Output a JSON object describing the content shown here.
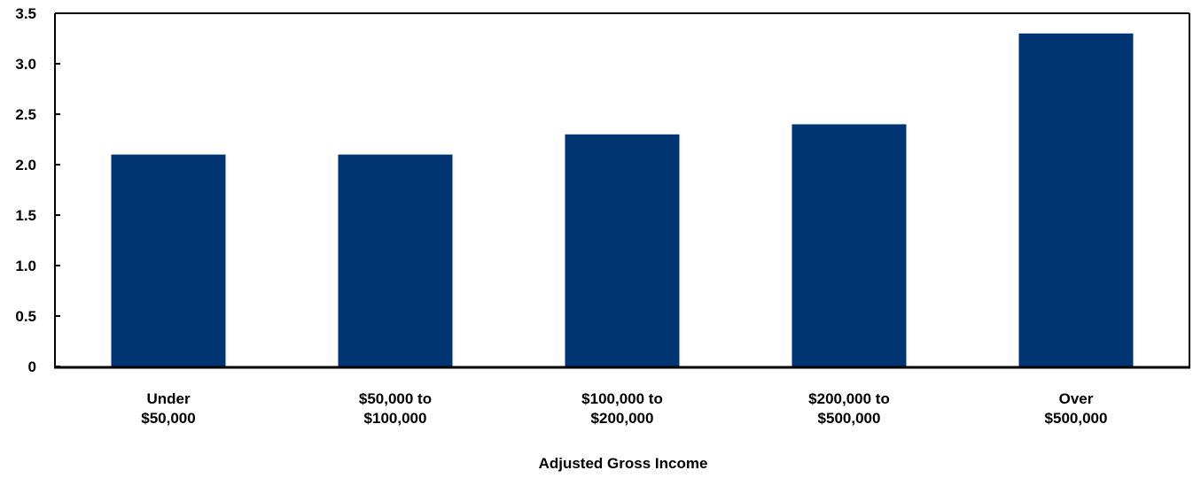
{
  "chart_data": {
    "type": "bar",
    "title": "",
    "xlabel": "Adjusted Gross Income",
    "ylabel": "",
    "categories": [
      [
        "Under",
        "$50,000"
      ],
      [
        "$50,000 to",
        "$100,000"
      ],
      [
        "$100,000 to",
        "$200,000"
      ],
      [
        "$200,000 to",
        "$500,000"
      ],
      [
        "Over",
        "$500,000"
      ]
    ],
    "values": [
      2.1,
      2.1,
      2.3,
      2.4,
      3.3
    ],
    "ylim": [
      0,
      3.5
    ],
    "yticks": [
      "0",
      "0.5",
      "1.0",
      "1.5",
      "2.0",
      "2.5",
      "3.0",
      "3.5"
    ],
    "grid": false,
    "legend": "none",
    "colors": {
      "bar": "#003473",
      "axis": "#000000",
      "background": "#ffffff"
    }
  }
}
